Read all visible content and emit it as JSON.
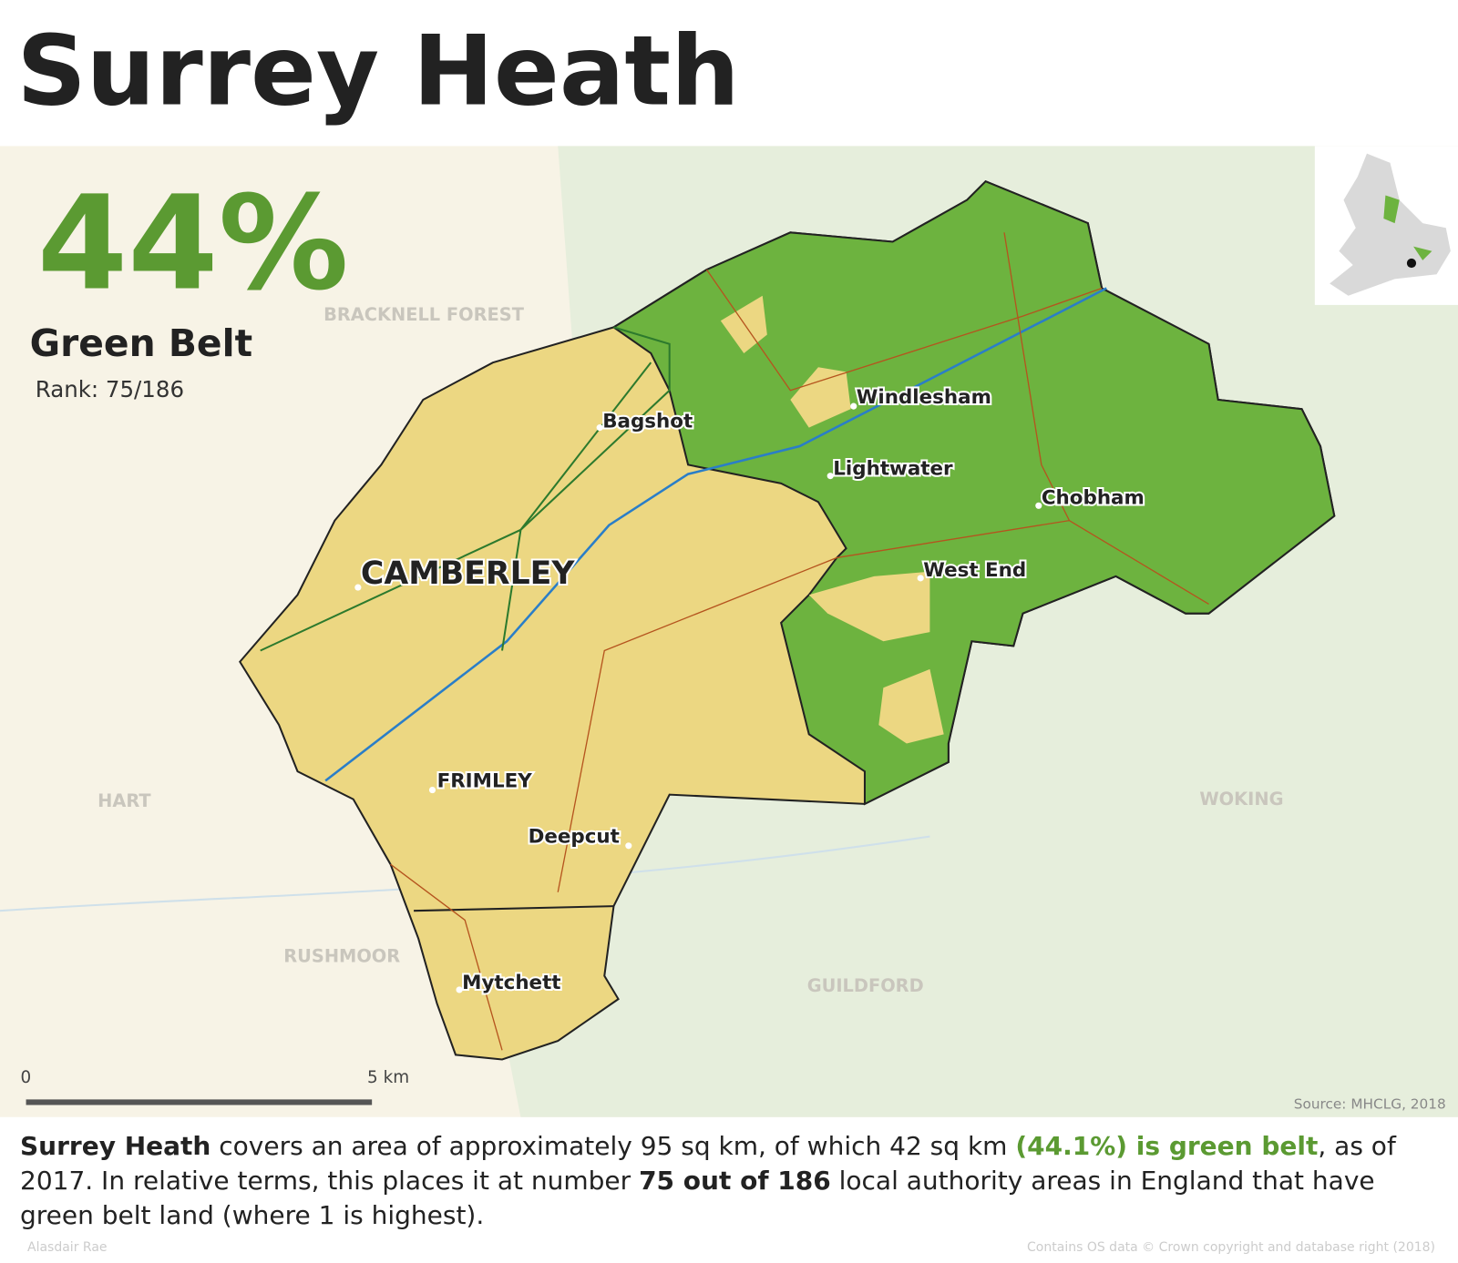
{
  "title": "Surrey Heath",
  "stat": {
    "value": "44%",
    "label": "Green Belt",
    "rank": "Rank: 75/186"
  },
  "places": [
    "CAMBERLEY",
    "Bagshot",
    "Windlesham",
    "Lightwater",
    "Chobham",
    "West End",
    "FRIMLEY",
    "Deepcut",
    "Mytchett"
  ],
  "neighbours": [
    "BRACKNELL FOREST",
    "HART",
    "RUSHMOOR",
    "GUILDFORD",
    "WOKING"
  ],
  "scale": {
    "start": "0",
    "end": "5 km"
  },
  "source": "Source: MHCLG, 2018",
  "description": [
    "Surrey Heath",
    " covers an area of approximately 95 sq km, of which 42 sq km ",
    "(44.1%) is green belt",
    ", as of 2017. In relative terms, this places it at number ",
    "75 out of 186",
    " local authority areas in England that have green belt land (where 1 is highest)."
  ],
  "credit": "Alasdair Rae",
  "copyright": "Contains OS data © Crown copyright and database right (2018)"
}
